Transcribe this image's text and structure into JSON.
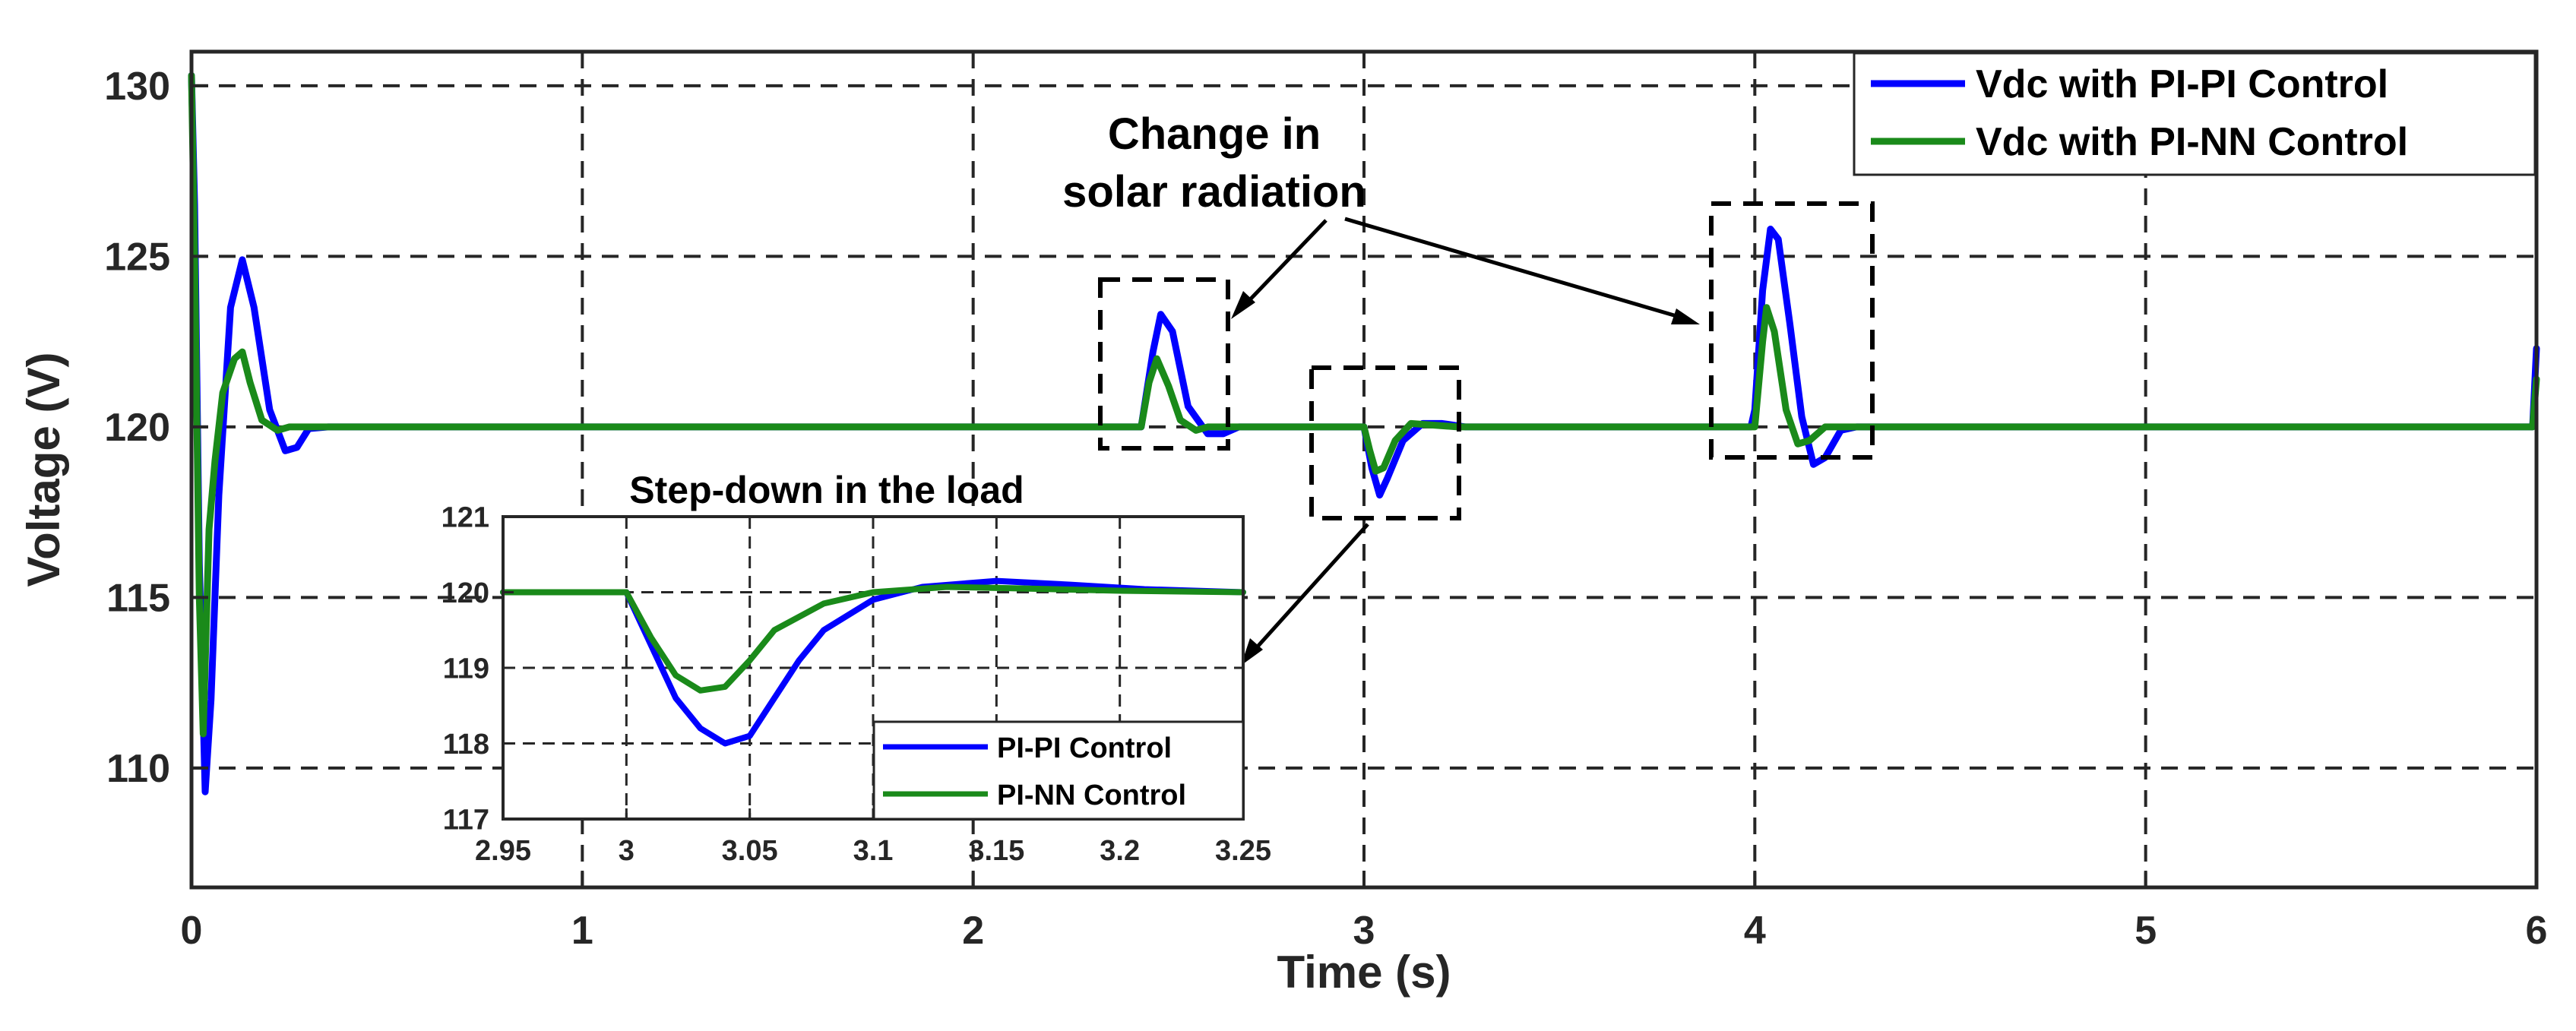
{
  "chart_data": [
    {
      "type": "line",
      "xlabel": "Time (s)",
      "ylabel": "Voltage (V)",
      "xlim": [
        0,
        6
      ],
      "ylim": [
        106.5,
        131
      ],
      "xticks": [
        0,
        1,
        2,
        3,
        4,
        5,
        6
      ],
      "yticks": [
        110,
        115,
        120,
        125,
        130
      ],
      "xtick_labels": [
        "0",
        "1",
        "2",
        "3",
        "4",
        "5",
        "6"
      ],
      "ytick_labels": [
        "110",
        "115",
        "120",
        "125",
        "130"
      ],
      "grid": true,
      "legend_position": "top-right",
      "series": [
        {
          "name": "Vdc with PI-PI Control",
          "color": "#0000ff",
          "points": [
            [
              0,
              130.3
            ],
            [
              0.008,
              126.5
            ],
            [
              0.02,
              116
            ],
            [
              0.035,
              109.3
            ],
            [
              0.05,
              112
            ],
            [
              0.07,
              118
            ],
            [
              0.1,
              123.5
            ],
            [
              0.13,
              124.9
            ],
            [
              0.16,
              123.5
            ],
            [
              0.2,
              120.5
            ],
            [
              0.24,
              119.3
            ],
            [
              0.27,
              119.4
            ],
            [
              0.3,
              119.95
            ],
            [
              0.35,
              120
            ],
            [
              2.43,
              120
            ],
            [
              2.46,
              122.2
            ],
            [
              2.48,
              123.3
            ],
            [
              2.51,
              122.8
            ],
            [
              2.55,
              120.6
            ],
            [
              2.6,
              119.8
            ],
            [
              2.64,
              119.8
            ],
            [
              2.68,
              120
            ],
            [
              2.97,
              120
            ],
            [
              3.0,
              120
            ],
            [
              3.02,
              118.8
            ],
            [
              3.04,
              118
            ],
            [
              3.06,
              118.5
            ],
            [
              3.1,
              119.6
            ],
            [
              3.15,
              120.1
            ],
            [
              3.2,
              120.1
            ],
            [
              3.26,
              120
            ],
            [
              3.99,
              120
            ],
            [
              4.0,
              120.5
            ],
            [
              4.02,
              124
            ],
            [
              4.04,
              125.8
            ],
            [
              4.06,
              125.5
            ],
            [
              4.09,
              123
            ],
            [
              4.12,
              120.3
            ],
            [
              4.15,
              118.9
            ],
            [
              4.18,
              119.1
            ],
            [
              4.22,
              119.9
            ],
            [
              4.26,
              120
            ],
            [
              5.99,
              120
            ],
            [
              6.0,
              122.3
            ]
          ]
        },
        {
          "name": "Vdc with PI-NN Control",
          "color": "#1a8a1a",
          "points": [
            [
              0,
              130.3
            ],
            [
              0.008,
              125
            ],
            [
              0.02,
              115
            ],
            [
              0.03,
              111
            ],
            [
              0.045,
              117
            ],
            [
              0.06,
              119
            ],
            [
              0.08,
              121
            ],
            [
              0.11,
              122
            ],
            [
              0.13,
              122.2
            ],
            [
              0.15,
              121.3
            ],
            [
              0.18,
              120.2
            ],
            [
              0.22,
              119.9
            ],
            [
              0.25,
              120
            ],
            [
              2.43,
              120
            ],
            [
              2.45,
              121.3
            ],
            [
              2.47,
              122
            ],
            [
              2.5,
              121.2
            ],
            [
              2.53,
              120.2
            ],
            [
              2.57,
              119.9
            ],
            [
              2.6,
              120
            ],
            [
              3.0,
              120
            ],
            [
              3.015,
              119.3
            ],
            [
              3.03,
              118.7
            ],
            [
              3.05,
              118.8
            ],
            [
              3.08,
              119.6
            ],
            [
              3.12,
              120.1
            ],
            [
              3.18,
              120.05
            ],
            [
              3.24,
              120
            ],
            [
              4.0,
              120
            ],
            [
              4.02,
              122.5
            ],
            [
              4.03,
              123.5
            ],
            [
              4.05,
              122.8
            ],
            [
              4.08,
              120.5
            ],
            [
              4.11,
              119.5
            ],
            [
              4.14,
              119.6
            ],
            [
              4.18,
              120
            ],
            [
              5.99,
              120
            ],
            [
              6.0,
              121.4
            ]
          ]
        }
      ],
      "annotations": [
        "Change in",
        "solar radiation"
      ]
    },
    {
      "type": "line",
      "title": "Step-down in the load",
      "xlim": [
        2.95,
        3.25
      ],
      "ylim": [
        117,
        121
      ],
      "xticks": [
        2.95,
        3,
        3.05,
        3.1,
        3.15,
        3.2,
        3.25
      ],
      "yticks": [
        117,
        118,
        119,
        120,
        121
      ],
      "xtick_labels": [
        "2.95",
        "3",
        "3.05",
        "3.1",
        "3.15",
        "3.2",
        "3.25"
      ],
      "ytick_labels": [
        "117",
        "118",
        "119",
        "120",
        "121"
      ],
      "grid": true,
      "legend_position": "bottom-right",
      "series": [
        {
          "name": "PI-PI Control",
          "color": "#0000ff",
          "points": [
            [
              2.95,
              120
            ],
            [
              3.0,
              120
            ],
            [
              3.01,
              119.3
            ],
            [
              3.02,
              118.6
            ],
            [
              3.03,
              118.2
            ],
            [
              3.04,
              118.0
            ],
            [
              3.05,
              118.1
            ],
            [
              3.06,
              118.6
            ],
            [
              3.07,
              119.1
            ],
            [
              3.08,
              119.5
            ],
            [
              3.1,
              119.9
            ],
            [
              3.12,
              120.07
            ],
            [
              3.15,
              120.15
            ],
            [
              3.18,
              120.1
            ],
            [
              3.21,
              120.04
            ],
            [
              3.25,
              120
            ]
          ]
        },
        {
          "name": "PI-NN Control",
          "color": "#1a8a1a",
          "points": [
            [
              2.95,
              120
            ],
            [
              3.0,
              120
            ],
            [
              3.01,
              119.4
            ],
            [
              3.02,
              118.9
            ],
            [
              3.03,
              118.7
            ],
            [
              3.04,
              118.75
            ],
            [
              3.05,
              119.1
            ],
            [
              3.06,
              119.5
            ],
            [
              3.08,
              119.85
            ],
            [
              3.1,
              120.0
            ],
            [
              3.13,
              120.07
            ],
            [
              3.16,
              120.05
            ],
            [
              3.2,
              120.02
            ],
            [
              3.25,
              120
            ]
          ]
        }
      ]
    }
  ]
}
